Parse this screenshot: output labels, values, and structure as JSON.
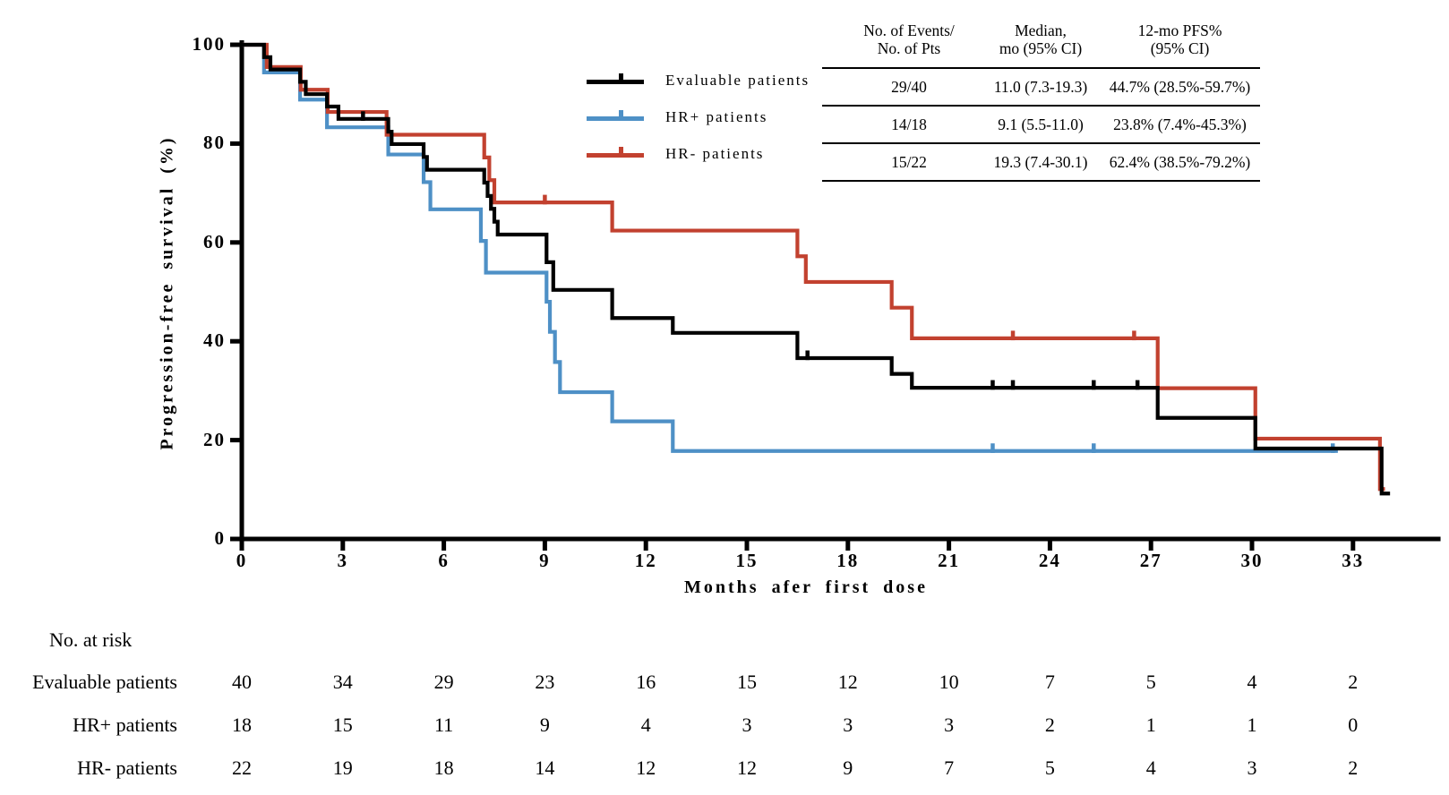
{
  "figure": {
    "background": "#ffffff",
    "colors": {
      "evaluable": "#000000",
      "hr_pos": "#4E90C6",
      "hr_neg": "#C2412F"
    }
  },
  "axes": {
    "x_label": "Months afer first dose",
    "y_label": "Progression-free survival (%)",
    "x_ticks": [
      0,
      3,
      6,
      9,
      12,
      15,
      18,
      21,
      24,
      27,
      30,
      33
    ],
    "y_ticks": [
      0,
      20,
      40,
      60,
      80,
      100
    ],
    "x_range_months": [
      0,
      35.6
    ],
    "y_range_pct": [
      0,
      100
    ]
  },
  "legend": {
    "items": [
      {
        "label": "Evaluable patients"
      },
      {
        "label": "HR+ patients"
      },
      {
        "label": "HR- patients"
      }
    ]
  },
  "stats_table": {
    "columns": [
      {
        "line1": "No. of Events/",
        "line2": "No. of Pts"
      },
      {
        "line1": "Median,",
        "line2": "mo (95% CI)"
      },
      {
        "line1": "12-mo PFS%",
        "line2": "(95% CI)"
      }
    ],
    "rows": [
      {
        "events": "29/40",
        "median": "11.0 (7.3-19.3)",
        "pfs12": "44.7% (28.5%-59.7%)"
      },
      {
        "events": "14/18",
        "median": "9.1 (5.5-11.0)",
        "pfs12": "23.8% (7.4%-45.3%)"
      },
      {
        "events": "15/22",
        "median": "19.3 (7.4-30.1)",
        "pfs12": "62.4% (38.5%-79.2%)"
      }
    ]
  },
  "risk_table": {
    "title": "No. at risk",
    "months": [
      0,
      3,
      6,
      9,
      12,
      15,
      18,
      21,
      24,
      27,
      30,
      33
    ],
    "rows": [
      {
        "label": "Evaluable patients",
        "values": [
          40,
          34,
          29,
          23,
          16,
          15,
          12,
          10,
          7,
          5,
          4,
          2
        ]
      },
      {
        "label": "HR+ patients",
        "values": [
          18,
          15,
          11,
          9,
          4,
          3,
          3,
          3,
          2,
          1,
          1,
          0
        ]
      },
      {
        "label": "HR- patients",
        "values": [
          22,
          19,
          18,
          14,
          12,
          12,
          9,
          7,
          5,
          4,
          3,
          2
        ]
      }
    ]
  },
  "chart_data": {
    "type": "line",
    "subtype": "kaplan-meier-step",
    "title": "",
    "xlabel": "Months afer first dose",
    "ylabel": "Progression-free survival (%)",
    "xlim": [
      0,
      35.6
    ],
    "ylim": [
      0,
      100
    ],
    "grid": false,
    "legend_position": "upper-center-left",
    "series": [
      {
        "name": "Evaluable patients",
        "color": "#000000",
        "end_month": 34.1,
        "steps": [
          [
            0,
            100
          ],
          [
            0.66,
            97.5
          ],
          [
            0.85,
            95.0
          ],
          [
            1.73,
            92.5
          ],
          [
            1.9,
            90.0
          ],
          [
            2.53,
            87.5
          ],
          [
            2.87,
            85.0
          ],
          [
            4.35,
            82.4
          ],
          [
            4.45,
            79.9
          ],
          [
            5.4,
            77.3
          ],
          [
            5.5,
            74.7
          ],
          [
            7.2,
            72.1
          ],
          [
            7.3,
            69.4
          ],
          [
            7.4,
            66.8
          ],
          [
            7.5,
            64.2
          ],
          [
            7.6,
            61.6
          ],
          [
            9.05,
            56.0
          ],
          [
            9.25,
            50.4
          ],
          [
            11.0,
            44.7
          ],
          [
            12.8,
            41.7
          ],
          [
            16.5,
            36.6
          ],
          [
            19.3,
            33.4
          ],
          [
            19.9,
            30.6
          ],
          [
            27.2,
            24.5
          ],
          [
            30.1,
            18.3
          ],
          [
            33.85,
            9.2
          ]
        ],
        "censors": [
          [
            3.6,
            85.0
          ],
          [
            16.8,
            36.6
          ],
          [
            22.3,
            30.6
          ],
          [
            22.9,
            30.6
          ],
          [
            25.3,
            30.6
          ],
          [
            26.6,
            30.6
          ]
        ]
      },
      {
        "name": "HR+ patients",
        "color": "#4E90C6",
        "end_month": 32.55,
        "steps": [
          [
            0,
            100
          ],
          [
            0.66,
            94.4
          ],
          [
            1.73,
            88.9
          ],
          [
            2.53,
            83.3
          ],
          [
            4.35,
            77.8
          ],
          [
            5.4,
            72.2
          ],
          [
            5.6,
            66.7
          ],
          [
            7.1,
            60.3
          ],
          [
            7.25,
            53.9
          ],
          [
            9.05,
            48.0
          ],
          [
            9.15,
            41.9
          ],
          [
            9.3,
            35.8
          ],
          [
            9.45,
            29.7
          ],
          [
            11.0,
            23.8
          ],
          [
            12.8,
            17.8
          ]
        ],
        "censors": [
          [
            22.3,
            17.8
          ],
          [
            25.3,
            17.8
          ],
          [
            32.4,
            17.8
          ]
        ]
      },
      {
        "name": "HR- patients",
        "color": "#C2412F",
        "end_month": 33.95,
        "steps": [
          [
            0,
            100
          ],
          [
            0.74,
            95.5
          ],
          [
            1.75,
            90.9
          ],
          [
            2.55,
            86.4
          ],
          [
            4.3,
            81.8
          ],
          [
            7.2,
            77.2
          ],
          [
            7.35,
            72.6
          ],
          [
            7.5,
            68.1
          ],
          [
            11.0,
            62.4
          ],
          [
            16.5,
            57.2
          ],
          [
            16.75,
            52.0
          ],
          [
            19.3,
            46.8
          ],
          [
            19.9,
            40.6
          ],
          [
            27.2,
            30.5
          ],
          [
            30.1,
            20.3
          ],
          [
            33.8,
            10.1
          ]
        ],
        "censors": [
          [
            9.0,
            68.1
          ],
          [
            22.9,
            40.6
          ],
          [
            26.5,
            40.6
          ]
        ]
      }
    ]
  }
}
